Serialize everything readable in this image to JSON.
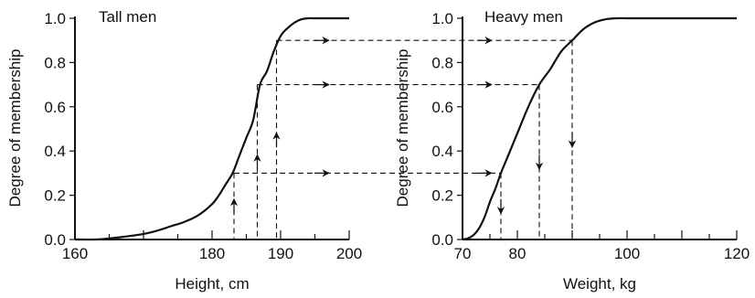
{
  "chart_data": [
    {
      "type": "line",
      "title": "Tall men",
      "xlabel": "Height, cm",
      "ylabel": "Degree of membership",
      "xlim": [
        160,
        200
      ],
      "ylim": [
        0,
        1
      ],
      "x_ticks": [
        160,
        170,
        180,
        190,
        200
      ],
      "x_tick_labels": [
        "160",
        "",
        "180",
        "190",
        "200"
      ],
      "y_ticks": [
        0,
        0.2,
        0.4,
        0.6,
        0.8,
        1.0
      ],
      "y_tick_labels": [
        "0.0",
        "0.2",
        "0.4",
        "0.6",
        "0.8",
        "1.0"
      ],
      "minor_x_ticks": [
        165,
        175,
        185,
        195
      ],
      "series": [
        {
          "x": [
            160,
            163,
            165,
            167,
            170,
            172,
            174,
            176,
            178,
            180,
            181,
            182,
            183,
            184,
            185,
            186,
            187,
            188,
            189,
            190,
            191,
            192,
            193,
            194,
            195,
            200
          ],
          "y": [
            0,
            0,
            0.005,
            0.012,
            0.025,
            0.04,
            0.06,
            0.08,
            0.11,
            0.16,
            0.2,
            0.25,
            0.3,
            0.38,
            0.46,
            0.54,
            0.7,
            0.76,
            0.85,
            0.92,
            0.955,
            0.98,
            0.995,
            1.0,
            1.0,
            1.0
          ]
        }
      ],
      "guides": [
        {
          "x": 183.2,
          "y": 0.3,
          "arrow": "up"
        },
        {
          "x": 186.6,
          "y": 0.7,
          "arrow": "up"
        },
        {
          "x": 189.4,
          "y": 0.9,
          "arrow": "up"
        }
      ]
    },
    {
      "type": "line",
      "title": "Heavy men",
      "xlabel": "Weight, kg",
      "ylabel": "Degree of membership",
      "xlim": [
        70,
        120
      ],
      "ylim": [
        0,
        1
      ],
      "x_ticks": [
        70,
        80,
        90,
        100,
        110,
        120
      ],
      "x_tick_labels": [
        "70",
        "80",
        "",
        "100",
        "",
        "120"
      ],
      "y_ticks": [
        0,
        0.2,
        0.4,
        0.6,
        0.8,
        1.0
      ],
      "y_tick_labels": [
        "0.0",
        "0.2",
        "0.4",
        "0.6",
        "0.8",
        "1.0"
      ],
      "minor_x_ticks": [
        75,
        85,
        95,
        105,
        115
      ],
      "series": [
        {
          "x": [
            70,
            71,
            72,
            73,
            74,
            75,
            76,
            77,
            78,
            80,
            82,
            84,
            86,
            88,
            90,
            92,
            94,
            96,
            98,
            100,
            102,
            104,
            106,
            108,
            120
          ],
          "y": [
            0,
            0.005,
            0.02,
            0.05,
            0.1,
            0.17,
            0.23,
            0.3,
            0.36,
            0.48,
            0.6,
            0.7,
            0.77,
            0.85,
            0.9,
            0.95,
            0.98,
            0.995,
            1.0,
            1.0,
            1.0,
            1.0,
            1.0,
            1.0,
            1.0
          ]
        }
      ],
      "guides": [
        {
          "x": 77,
          "y": 0.3,
          "arrow": "down"
        },
        {
          "x": 84,
          "y": 0.7,
          "arrow": "down"
        },
        {
          "x": 90,
          "y": 0.9,
          "arrow": "down"
        }
      ]
    }
  ]
}
